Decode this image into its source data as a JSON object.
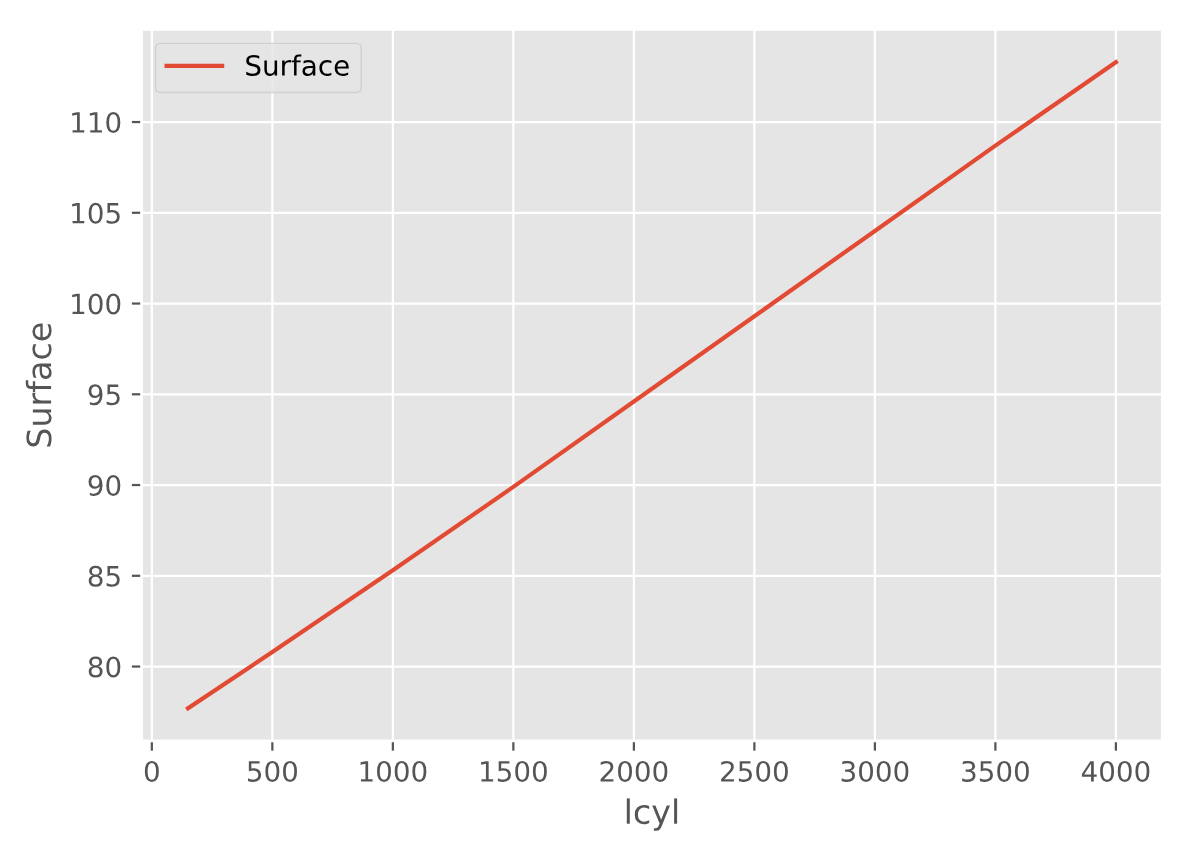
{
  "chart_data": {
    "type": "line",
    "xlabel": "lcyl",
    "ylabel": "Surface",
    "x": [
      150,
      500,
      1000,
      1500,
      2000,
      2500,
      3000,
      3500,
      4000
    ],
    "series": [
      {
        "name": "Surface",
        "color": "#e24a33",
        "values": [
          77.7,
          80.8,
          85.3,
          89.9,
          94.6,
          99.3,
          104.0,
          108.7,
          113.3
        ]
      }
    ],
    "xlim": [
      -42.5,
      4192.5
    ],
    "ylim": [
      75.9,
      115.1
    ],
    "xticks": [
      0,
      500,
      1000,
      1500,
      2000,
      2500,
      3000,
      3500,
      4000
    ],
    "yticks": [
      80,
      85,
      90,
      95,
      100,
      105,
      110
    ],
    "grid": true,
    "legend": "top left",
    "marker": "none",
    "line_style": "solid"
  }
}
